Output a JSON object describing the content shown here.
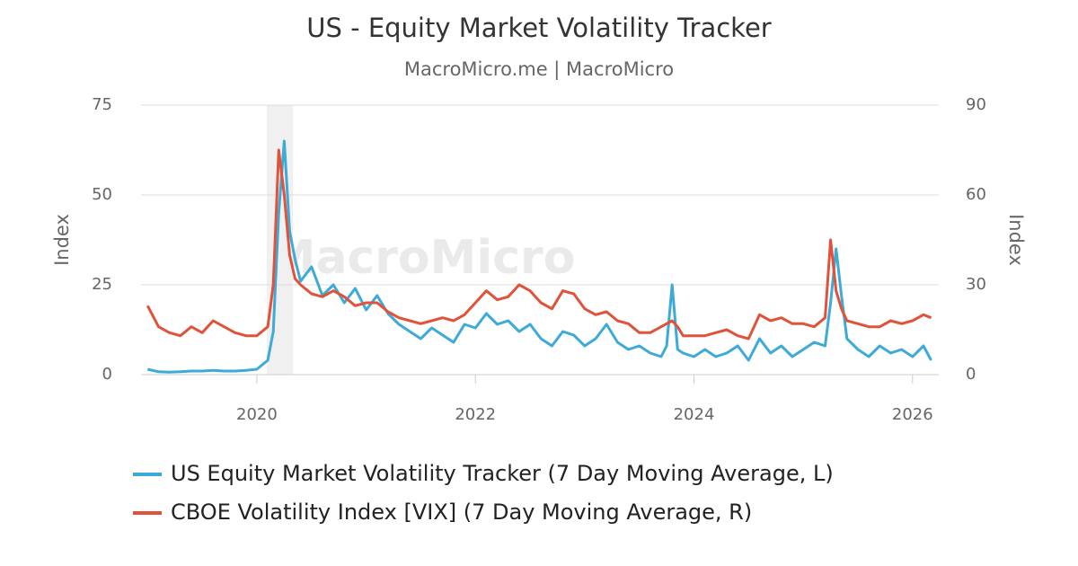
{
  "chart_data": {
    "type": "line",
    "title": "US - Equity Market Volatility Tracker",
    "subtitle": "MacroMicro.me | MacroMicro",
    "watermark": "MacroMicro",
    "ylabel": "Index",
    "y2label": "Index",
    "grid": true,
    "xlim": [
      2018.94,
      2026.24
    ],
    "xticks": [
      2020,
      2022,
      2024,
      2026
    ],
    "ylim": [
      0,
      75
    ],
    "yticks": [
      0,
      25,
      50,
      75
    ],
    "y2lim": [
      0,
      90
    ],
    "y2ticks": [
      0,
      30,
      60,
      90
    ],
    "shaded_regions": [
      [
        2020.09,
        2020.33
      ]
    ],
    "x": [
      2019.0,
      2019.1,
      2019.2,
      2019.3,
      2019.4,
      2019.5,
      2019.6,
      2019.7,
      2019.8,
      2019.9,
      2020.0,
      2020.1,
      2020.15,
      2020.2,
      2020.25,
      2020.3,
      2020.35,
      2020.4,
      2020.5,
      2020.6,
      2020.7,
      2020.8,
      2020.9,
      2021.0,
      2021.1,
      2021.2,
      2021.3,
      2021.4,
      2021.5,
      2021.6,
      2021.7,
      2021.8,
      2021.9,
      2022.0,
      2022.1,
      2022.2,
      2022.3,
      2022.4,
      2022.5,
      2022.6,
      2022.7,
      2022.8,
      2022.9,
      2023.0,
      2023.1,
      2023.2,
      2023.3,
      2023.4,
      2023.5,
      2023.6,
      2023.7,
      2023.75,
      2023.8,
      2023.85,
      2023.9,
      2024.0,
      2024.1,
      2024.2,
      2024.3,
      2024.4,
      2024.5,
      2024.6,
      2024.7,
      2024.8,
      2024.9,
      2025.0,
      2025.1,
      2025.2,
      2025.25,
      2025.3,
      2025.35,
      2025.4,
      2025.5,
      2025.6,
      2025.7,
      2025.8,
      2025.9,
      2026.0,
      2026.1,
      2026.17
    ],
    "series": [
      {
        "name": "US Equity Market Volatility Tracker (7 Day Moving Average, L)",
        "color": "#3eaad8",
        "axis": "y",
        "values": [
          1.5,
          0.8,
          0.7,
          0.8,
          1,
          1,
          1.2,
          1,
          1,
          1.2,
          1.5,
          4,
          12,
          45,
          65,
          40,
          32,
          26,
          30,
          22,
          25,
          20,
          24,
          18,
          22,
          17,
          14,
          12,
          10,
          13,
          11,
          9,
          14,
          13,
          17,
          14,
          15,
          12,
          14,
          10,
          8,
          12,
          11,
          8,
          10,
          14,
          9,
          7,
          8,
          6,
          5,
          8,
          25,
          7,
          6,
          5,
          7,
          5,
          6,
          8,
          4,
          10,
          6,
          8,
          5,
          7,
          9,
          8,
          20,
          35,
          22,
          10,
          7,
          5,
          8,
          6,
          7,
          5,
          8,
          4
        ]
      },
      {
        "name": "CBOE Volatility Index [VIX] (7 Day Moving Average, R)",
        "color": "#e0533a",
        "axis": "y2",
        "values": [
          23,
          16,
          14,
          13,
          16,
          14,
          18,
          16,
          14,
          13,
          13,
          16,
          30,
          75,
          60,
          40,
          32,
          30,
          27,
          26,
          28,
          26,
          23,
          24,
          24,
          21,
          19,
          18,
          17,
          18,
          19,
          18,
          20,
          24,
          28,
          25,
          26,
          30,
          28,
          24,
          22,
          28,
          27,
          22,
          20,
          21,
          18,
          17,
          14,
          14,
          16,
          17,
          18,
          16,
          13,
          13,
          13,
          14,
          15,
          13,
          12,
          20,
          18,
          19,
          17,
          17,
          16,
          19,
          45,
          28,
          22,
          18,
          17,
          16,
          16,
          18,
          17,
          18,
          20,
          19
        ]
      }
    ]
  }
}
